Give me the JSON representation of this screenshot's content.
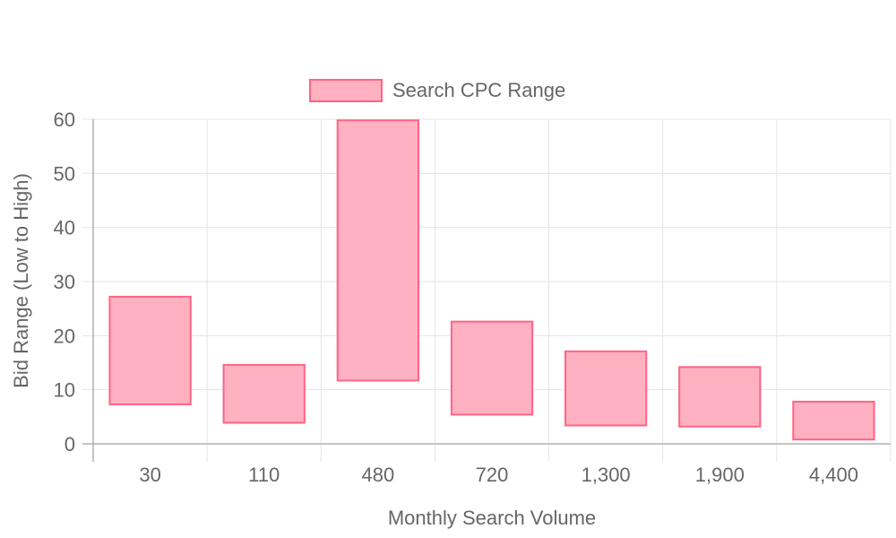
{
  "chart_data": {
    "type": "floating-bar",
    "categories": [
      "30",
      "110",
      "480",
      "720",
      "1,300",
      "1,900",
      "4,400"
    ],
    "series": [
      {
        "name": "Search CPC Range",
        "ranges": [
          [
            7.3,
            27.2
          ],
          [
            3.9,
            14.6
          ],
          [
            11.7,
            59.8
          ],
          [
            5.4,
            22.6
          ],
          [
            3.4,
            17.1
          ],
          [
            3.2,
            14.2
          ],
          [
            0.8,
            7.8
          ]
        ]
      }
    ],
    "title": "",
    "xlabel": "Monthly Search Volume",
    "ylabel": "Bid Range (Low to High)",
    "ylim": [
      0,
      60
    ],
    "yticks": [
      "0",
      "10",
      "20",
      "30",
      "40",
      "50",
      "60"
    ],
    "grid": true,
    "legend_position": "top-center"
  },
  "colors": {
    "bar_fill": "#ffb1c1",
    "bar_stroke": "#ff6384",
    "grid": "#e5e5e5",
    "axis": "#b0b0b0",
    "text": "#666666"
  }
}
